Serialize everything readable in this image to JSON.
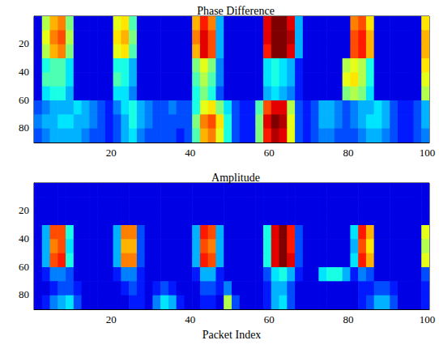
{
  "chart_data": [
    {
      "type": "heatmap",
      "title": "Phase Difference",
      "xlim": [
        0.5,
        100.5
      ],
      "xticks": [
        20,
        40,
        60,
        80,
        100
      ],
      "ylim": [
        0.5,
        90.5
      ],
      "yticks": [
        20,
        40,
        60,
        80
      ],
      "zlim": [
        0,
        1
      ],
      "x_edges": [
        0.5,
        2.5,
        4.5,
        6.5,
        8.5,
        10.5,
        12.5,
        14.5,
        16.5,
        18.5,
        20.5,
        22.5,
        24.5,
        26.5,
        28.5,
        30.5,
        32.5,
        34.5,
        36.5,
        38.5,
        40.5,
        42.5,
        44.5,
        46.5,
        48.5,
        50.5,
        52.5,
        54.5,
        56.5,
        58.5,
        60.5,
        62.5,
        64.5,
        66.5,
        68.5,
        70.5,
        72.5,
        74.5,
        76.5,
        78.5,
        80.5,
        82.5,
        84.5,
        86.5,
        88.5,
        90.5,
        92.5,
        94.5,
        96.5,
        98.5,
        100.5
      ],
      "y_edges": [
        0.5,
        10.5,
        20.5,
        30.5,
        40.5,
        50.5,
        60.5,
        70.5,
        80.5,
        90.5
      ],
      "cells": [
        [
          0.1,
          0.55,
          0.7,
          0.75,
          0.5,
          0.1,
          0.1,
          0.1,
          0.1,
          0.1,
          0.6,
          0.65,
          0.45,
          0.1,
          0.1,
          0.1,
          0.1,
          0.1,
          0.1,
          0.1,
          0.7,
          0.85,
          0.75,
          0.3,
          0.1,
          0.1,
          0.1,
          0.1,
          0.1,
          0.9,
          1.0,
          1.0,
          0.9,
          0.3,
          0.1,
          0.1,
          0.1,
          0.1,
          0.1,
          0.1,
          0.75,
          0.8,
          0.65,
          0.1,
          0.1,
          0.1,
          0.1,
          0.1,
          0.1,
          0.65
        ],
        [
          0.1,
          0.6,
          0.75,
          0.8,
          0.55,
          0.1,
          0.1,
          0.1,
          0.1,
          0.1,
          0.65,
          0.7,
          0.5,
          0.1,
          0.1,
          0.1,
          0.1,
          0.1,
          0.1,
          0.1,
          0.75,
          0.9,
          0.8,
          0.3,
          0.1,
          0.1,
          0.1,
          0.1,
          0.1,
          0.9,
          1.0,
          1.0,
          0.95,
          0.3,
          0.1,
          0.1,
          0.1,
          0.1,
          0.1,
          0.1,
          0.8,
          0.85,
          0.7,
          0.1,
          0.1,
          0.1,
          0.1,
          0.1,
          0.1,
          0.7
        ],
        [
          0.1,
          0.55,
          0.7,
          0.75,
          0.5,
          0.1,
          0.1,
          0.1,
          0.1,
          0.1,
          0.6,
          0.65,
          0.45,
          0.1,
          0.1,
          0.1,
          0.1,
          0.1,
          0.1,
          0.1,
          0.7,
          0.9,
          0.8,
          0.3,
          0.1,
          0.1,
          0.1,
          0.1,
          0.1,
          0.85,
          1.0,
          1.0,
          0.9,
          0.3,
          0.1,
          0.1,
          0.1,
          0.1,
          0.1,
          0.1,
          0.8,
          0.85,
          0.7,
          0.1,
          0.1,
          0.1,
          0.1,
          0.1,
          0.1,
          0.7
        ],
        [
          0.1,
          0.4,
          0.45,
          0.45,
          0.35,
          0.1,
          0.1,
          0.1,
          0.1,
          0.1,
          0.4,
          0.4,
          0.3,
          0.1,
          0.1,
          0.1,
          0.1,
          0.1,
          0.1,
          0.1,
          0.5,
          0.6,
          0.5,
          0.25,
          0.1,
          0.1,
          0.1,
          0.1,
          0.1,
          0.35,
          0.4,
          0.35,
          0.3,
          0.15,
          0.1,
          0.1,
          0.1,
          0.1,
          0.1,
          0.55,
          0.6,
          0.55,
          0.4,
          0.1,
          0.1,
          0.1,
          0.1,
          0.1,
          0.1,
          0.65
        ],
        [
          0.1,
          0.45,
          0.45,
          0.45,
          0.35,
          0.1,
          0.1,
          0.1,
          0.1,
          0.1,
          0.45,
          0.4,
          0.3,
          0.1,
          0.1,
          0.1,
          0.1,
          0.1,
          0.1,
          0.1,
          0.45,
          0.55,
          0.45,
          0.25,
          0.1,
          0.1,
          0.1,
          0.1,
          0.1,
          0.35,
          0.4,
          0.35,
          0.3,
          0.15,
          0.1,
          0.1,
          0.1,
          0.1,
          0.1,
          0.6,
          0.65,
          0.55,
          0.4,
          0.1,
          0.1,
          0.1,
          0.1,
          0.1,
          0.1,
          0.6
        ],
        [
          0.1,
          0.35,
          0.4,
          0.4,
          0.3,
          0.1,
          0.1,
          0.1,
          0.1,
          0.1,
          0.35,
          0.35,
          0.25,
          0.1,
          0.1,
          0.1,
          0.1,
          0.1,
          0.1,
          0.1,
          0.4,
          0.5,
          0.4,
          0.2,
          0.1,
          0.1,
          0.1,
          0.1,
          0.1,
          0.3,
          0.35,
          0.3,
          0.25,
          0.15,
          0.1,
          0.1,
          0.1,
          0.1,
          0.1,
          0.5,
          0.55,
          0.5,
          0.35,
          0.1,
          0.1,
          0.1,
          0.1,
          0.1,
          0.1,
          0.55
        ],
        [
          0.2,
          0.25,
          0.3,
          0.3,
          0.3,
          0.35,
          0.3,
          0.25,
          0.2,
          0.15,
          0.25,
          0.35,
          0.4,
          0.3,
          0.25,
          0.2,
          0.2,
          0.25,
          0.2,
          0.2,
          0.4,
          0.6,
          0.65,
          0.5,
          0.35,
          0.2,
          0.15,
          0.15,
          0.45,
          0.8,
          0.9,
          0.9,
          0.55,
          0.2,
          0.15,
          0.2,
          0.3,
          0.3,
          0.25,
          0.2,
          0.25,
          0.3,
          0.3,
          0.35,
          0.3,
          0.2,
          0.15,
          0.15,
          0.2,
          0.3
        ],
        [
          0.25,
          0.3,
          0.3,
          0.35,
          0.35,
          0.3,
          0.3,
          0.25,
          0.2,
          0.15,
          0.2,
          0.3,
          0.4,
          0.3,
          0.25,
          0.2,
          0.2,
          0.2,
          0.2,
          0.2,
          0.5,
          0.75,
          0.8,
          0.65,
          0.4,
          0.2,
          0.15,
          0.15,
          0.5,
          0.9,
          1.0,
          0.95,
          0.6,
          0.2,
          0.15,
          0.2,
          0.3,
          0.3,
          0.25,
          0.2,
          0.25,
          0.3,
          0.35,
          0.35,
          0.3,
          0.2,
          0.15,
          0.15,
          0.2,
          0.3
        ],
        [
          0.2,
          0.25,
          0.3,
          0.3,
          0.3,
          0.3,
          0.25,
          0.2,
          0.2,
          0.15,
          0.2,
          0.3,
          0.35,
          0.25,
          0.2,
          0.2,
          0.2,
          0.2,
          0.15,
          0.2,
          0.45,
          0.7,
          0.75,
          0.6,
          0.4,
          0.2,
          0.15,
          0.15,
          0.5,
          0.85,
          0.95,
          0.9,
          0.6,
          0.2,
          0.15,
          0.2,
          0.25,
          0.25,
          0.2,
          0.2,
          0.2,
          0.25,
          0.3,
          0.3,
          0.25,
          0.2,
          0.15,
          0.15,
          0.2,
          0.25
        ]
      ]
    },
    {
      "type": "heatmap",
      "title": "Amplitude",
      "xlabel": "Packet Index",
      "xlim": [
        0.5,
        100.5
      ],
      "xticks": [
        20,
        40,
        60,
        80,
        100
      ],
      "ylim": [
        0.5,
        90.5
      ],
      "yticks": [
        20,
        40,
        60,
        80
      ],
      "zlim": [
        0,
        1
      ],
      "x_edges": [
        0.5,
        2.5,
        4.5,
        6.5,
        8.5,
        10.5,
        12.5,
        14.5,
        16.5,
        18.5,
        20.5,
        22.5,
        24.5,
        26.5,
        28.5,
        30.5,
        32.5,
        34.5,
        36.5,
        38.5,
        40.5,
        42.5,
        44.5,
        46.5,
        48.5,
        50.5,
        52.5,
        54.5,
        56.5,
        58.5,
        60.5,
        62.5,
        64.5,
        66.5,
        68.5,
        70.5,
        72.5,
        74.5,
        76.5,
        78.5,
        80.5,
        82.5,
        84.5,
        86.5,
        88.5,
        90.5,
        92.5,
        94.5,
        96.5,
        98.5,
        100.5
      ],
      "y_edges": [
        0.5,
        10.5,
        20.5,
        30.5,
        40.5,
        50.5,
        60.5,
        70.5,
        80.5,
        90.5
      ],
      "cells": [
        [
          0.1,
          0.1,
          0.1,
          0.1,
          0.1,
          0.1,
          0.1,
          0.1,
          0.1,
          0.1,
          0.1,
          0.1,
          0.1,
          0.1,
          0.1,
          0.1,
          0.1,
          0.1,
          0.1,
          0.1,
          0.1,
          0.1,
          0.1,
          0.1,
          0.1,
          0.1,
          0.1,
          0.1,
          0.1,
          0.1,
          0.1,
          0.1,
          0.1,
          0.1,
          0.1,
          0.1,
          0.1,
          0.1,
          0.1,
          0.1,
          0.1,
          0.1,
          0.1,
          0.1,
          0.1,
          0.1,
          0.1,
          0.1,
          0.1,
          0.1
        ],
        [
          0.1,
          0.1,
          0.1,
          0.1,
          0.1,
          0.1,
          0.1,
          0.1,
          0.1,
          0.1,
          0.1,
          0.1,
          0.1,
          0.1,
          0.1,
          0.1,
          0.1,
          0.1,
          0.1,
          0.1,
          0.1,
          0.1,
          0.1,
          0.1,
          0.1,
          0.1,
          0.1,
          0.1,
          0.1,
          0.1,
          0.1,
          0.1,
          0.1,
          0.1,
          0.1,
          0.1,
          0.1,
          0.1,
          0.1,
          0.1,
          0.1,
          0.1,
          0.1,
          0.1,
          0.1,
          0.1,
          0.1,
          0.1,
          0.1,
          0.1
        ],
        [
          0.1,
          0.1,
          0.1,
          0.1,
          0.1,
          0.1,
          0.1,
          0.1,
          0.1,
          0.1,
          0.1,
          0.1,
          0.1,
          0.1,
          0.1,
          0.1,
          0.1,
          0.1,
          0.1,
          0.1,
          0.1,
          0.1,
          0.1,
          0.1,
          0.1,
          0.1,
          0.1,
          0.1,
          0.1,
          0.1,
          0.1,
          0.1,
          0.1,
          0.1,
          0.1,
          0.1,
          0.1,
          0.1,
          0.1,
          0.1,
          0.1,
          0.1,
          0.1,
          0.1,
          0.1,
          0.1,
          0.1,
          0.1,
          0.1,
          0.1
        ],
        [
          0.1,
          0.3,
          0.8,
          0.8,
          0.4,
          0.1,
          0.1,
          0.1,
          0.1,
          0.1,
          0.3,
          0.75,
          0.75,
          0.2,
          0.1,
          0.1,
          0.1,
          0.1,
          0.1,
          0.1,
          0.3,
          0.85,
          0.8,
          0.3,
          0.1,
          0.1,
          0.1,
          0.1,
          0.1,
          0.4,
          0.9,
          1.0,
          0.85,
          0.2,
          0.1,
          0.1,
          0.1,
          0.1,
          0.1,
          0.1,
          0.35,
          0.85,
          0.7,
          0.1,
          0.1,
          0.1,
          0.1,
          0.1,
          0.1,
          0.6
        ],
        [
          0.1,
          0.3,
          0.75,
          0.8,
          0.35,
          0.1,
          0.1,
          0.1,
          0.1,
          0.1,
          0.3,
          0.7,
          0.7,
          0.2,
          0.1,
          0.1,
          0.1,
          0.1,
          0.1,
          0.1,
          0.3,
          0.8,
          0.75,
          0.3,
          0.1,
          0.1,
          0.1,
          0.1,
          0.1,
          0.4,
          0.9,
          1.0,
          0.85,
          0.2,
          0.1,
          0.1,
          0.1,
          0.1,
          0.1,
          0.1,
          0.3,
          0.8,
          0.65,
          0.1,
          0.1,
          0.1,
          0.1,
          0.1,
          0.1,
          0.55
        ],
        [
          0.1,
          0.3,
          0.8,
          0.85,
          0.4,
          0.1,
          0.1,
          0.1,
          0.1,
          0.1,
          0.3,
          0.75,
          0.75,
          0.2,
          0.1,
          0.1,
          0.1,
          0.1,
          0.1,
          0.1,
          0.3,
          0.85,
          0.8,
          0.3,
          0.1,
          0.1,
          0.1,
          0.1,
          0.1,
          0.4,
          0.9,
          1.0,
          0.9,
          0.2,
          0.1,
          0.1,
          0.1,
          0.1,
          0.1,
          0.1,
          0.35,
          0.85,
          0.7,
          0.1,
          0.1,
          0.1,
          0.1,
          0.1,
          0.1,
          0.6
        ],
        [
          0.1,
          0.15,
          0.25,
          0.25,
          0.2,
          0.1,
          0.1,
          0.1,
          0.1,
          0.1,
          0.15,
          0.25,
          0.25,
          0.15,
          0.1,
          0.1,
          0.1,
          0.1,
          0.1,
          0.1,
          0.15,
          0.3,
          0.3,
          0.15,
          0.1,
          0.1,
          0.1,
          0.1,
          0.1,
          0.2,
          0.35,
          0.4,
          0.3,
          0.15,
          0.1,
          0.1,
          0.35,
          0.4,
          0.4,
          0.3,
          0.15,
          0.25,
          0.2,
          0.1,
          0.1,
          0.1,
          0.1,
          0.1,
          0.1,
          0.2
        ],
        [
          0.1,
          0.1,
          0.15,
          0.2,
          0.2,
          0.15,
          0.1,
          0.1,
          0.1,
          0.1,
          0.1,
          0.15,
          0.2,
          0.15,
          0.1,
          0.15,
          0.2,
          0.15,
          0.1,
          0.1,
          0.1,
          0.2,
          0.2,
          0.15,
          0.25,
          0.1,
          0.1,
          0.1,
          0.1,
          0.15,
          0.3,
          0.3,
          0.2,
          0.1,
          0.1,
          0.1,
          0.1,
          0.1,
          0.1,
          0.1,
          0.1,
          0.15,
          0.15,
          0.2,
          0.2,
          0.15,
          0.1,
          0.1,
          0.1,
          0.15
        ],
        [
          0.1,
          0.15,
          0.25,
          0.3,
          0.35,
          0.2,
          0.1,
          0.1,
          0.1,
          0.1,
          0.1,
          0.1,
          0.15,
          0.15,
          0.1,
          0.25,
          0.35,
          0.3,
          0.15,
          0.1,
          0.1,
          0.15,
          0.15,
          0.1,
          0.55,
          0.2,
          0.1,
          0.1,
          0.1,
          0.15,
          0.3,
          0.35,
          0.2,
          0.1,
          0.1,
          0.1,
          0.1,
          0.1,
          0.1,
          0.1,
          0.1,
          0.15,
          0.2,
          0.3,
          0.3,
          0.2,
          0.1,
          0.1,
          0.1,
          0.15
        ]
      ]
    }
  ]
}
